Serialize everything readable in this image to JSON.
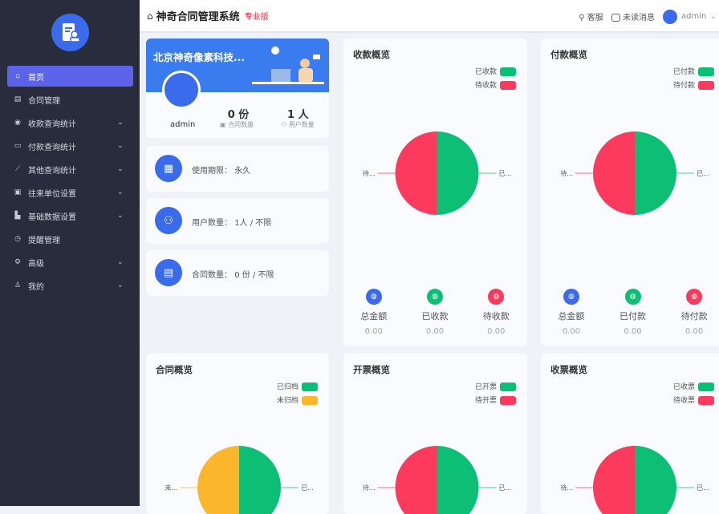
{
  "sidebar": {
    "items": [
      {
        "label": "首页",
        "icon": "home-icon",
        "active": true
      },
      {
        "label": "合同管理",
        "icon": "contract-icon"
      },
      {
        "label": "收款查询统计",
        "icon": "receipt-icon",
        "chev": true
      },
      {
        "label": "付款查询统计",
        "icon": "payment-icon",
        "chev": true
      },
      {
        "label": "其他查询统计",
        "icon": "chart-icon",
        "chev": true
      },
      {
        "label": "往来单位设置",
        "icon": "company-icon",
        "chev": true
      },
      {
        "label": "基础数据设置",
        "icon": "database-icon",
        "chev": true
      },
      {
        "label": "提醒管理",
        "icon": "alarm-icon"
      },
      {
        "label": "高级",
        "icon": "settings-icon",
        "chev": true
      },
      {
        "label": "我的",
        "icon": "user-icon",
        "chev": true
      }
    ]
  },
  "header": {
    "title": "神奇合同管理系统",
    "edition": "专业版",
    "service": "客服",
    "messages": "未读消息",
    "user": "admin"
  },
  "profile": {
    "company": "北京神奇像素科技...",
    "username": "admin",
    "contracts_value": "0 份",
    "contracts_label": "合同数量",
    "users_value": "1 人",
    "users_label": "用户数量"
  },
  "info": [
    {
      "label": "使用期限：",
      "value": "永久",
      "icon": "calendar-icon"
    },
    {
      "label": "用户数量：",
      "value": "1人 / 不限",
      "icon": "users-icon"
    },
    {
      "label": "合同数量：",
      "value": "0 份 / 不限",
      "icon": "document-icon"
    }
  ],
  "chart_data": [
    {
      "type": "pie",
      "title": "收款概览",
      "labels": [
        "已收款",
        "待收款"
      ],
      "short_labels": [
        "已...",
        "待..."
      ],
      "colors": [
        "#0dbf74",
        "#fb3a5e"
      ],
      "values": [
        50,
        50
      ],
      "stats": [
        {
          "label": "总金额",
          "value": "0.00",
          "color": "#3a6bea"
        },
        {
          "label": "已收款",
          "value": "0.00",
          "color": "#0dbf74"
        },
        {
          "label": "待收款",
          "value": "0.00",
          "color": "#fb3a5e"
        }
      ]
    },
    {
      "type": "pie",
      "title": "付款概览",
      "labels": [
        "已付款",
        "待付款"
      ],
      "short_labels": [
        "已...",
        "待..."
      ],
      "colors": [
        "#0dbf74",
        "#fb3a5e"
      ],
      "values": [
        50,
        50
      ],
      "stats": [
        {
          "label": "总金额",
          "value": "0.00",
          "color": "#3a6bea"
        },
        {
          "label": "已付款",
          "value": "0.00",
          "color": "#0dbf74"
        },
        {
          "label": "待付款",
          "value": "0.00",
          "color": "#fb3a5e"
        }
      ]
    },
    {
      "type": "pie",
      "title": "合同概览",
      "labels": [
        "已归档",
        "未归档"
      ],
      "short_labels": [
        "已...",
        "未..."
      ],
      "colors": [
        "#0dbf74",
        "#fbb62c"
      ],
      "values": [
        50,
        50
      ]
    },
    {
      "type": "pie",
      "title": "开票概览",
      "labels": [
        "已开票",
        "待开票"
      ],
      "short_labels": [
        "已...",
        "待..."
      ],
      "colors": [
        "#0dbf74",
        "#fb3a5e"
      ],
      "values": [
        50,
        50
      ]
    },
    {
      "type": "pie",
      "title": "收票概览",
      "labels": [
        "已收票",
        "待收票"
      ],
      "short_labels": [
        "已...",
        "待..."
      ],
      "colors": [
        "#0dbf74",
        "#fb3a5e"
      ],
      "values": [
        50,
        50
      ]
    }
  ]
}
